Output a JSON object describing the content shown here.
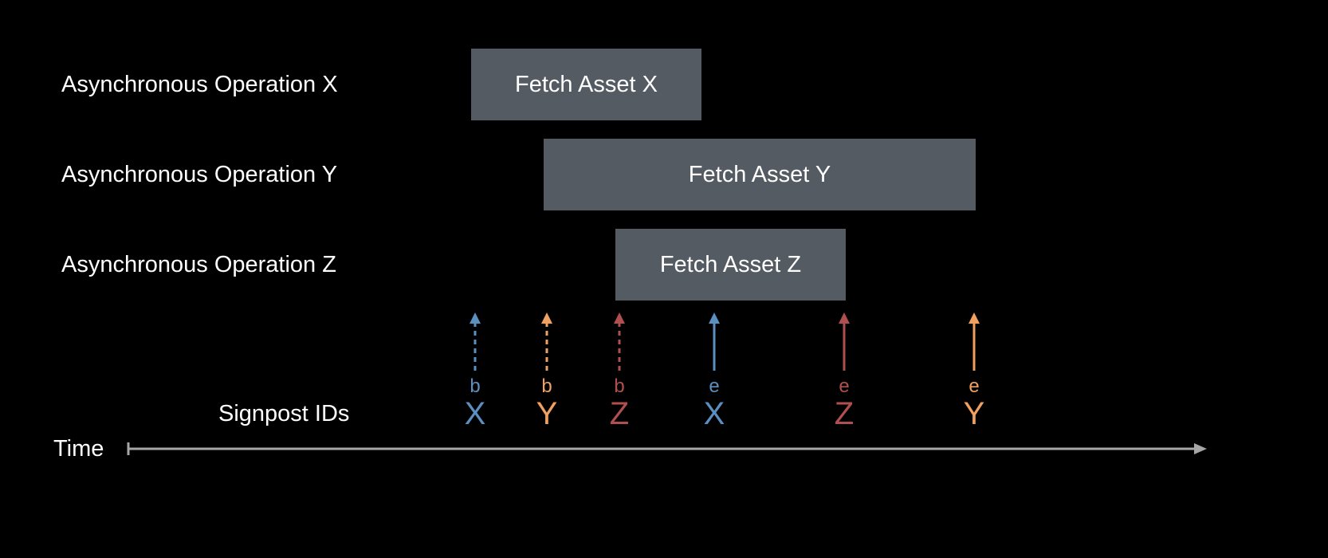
{
  "colors": {
    "background": "#000000",
    "bar_fill": "#545b62",
    "text": "#ffffff",
    "axis": "#a6a6a6",
    "X": "#5b8fc0",
    "Y": "#f0a060",
    "Z": "#b04f4f"
  },
  "rows": [
    {
      "label": "Asynchronous Operation X",
      "bar_label": "Fetch Asset X"
    },
    {
      "label": "Asynchronous Operation Y",
      "bar_label": "Fetch Asset Y"
    },
    {
      "label": "Asynchronous Operation Z",
      "bar_label": "Fetch Asset Z"
    }
  ],
  "signpost_label": "Signpost IDs",
  "time_label": "Time",
  "events": [
    {
      "kind": "b",
      "id": "X",
      "style": "dashed"
    },
    {
      "kind": "b",
      "id": "Y",
      "style": "dashed"
    },
    {
      "kind": "b",
      "id": "Z",
      "style": "dashed"
    },
    {
      "kind": "e",
      "id": "X",
      "style": "solid"
    },
    {
      "kind": "e",
      "id": "Z",
      "style": "solid"
    },
    {
      "kind": "e",
      "id": "Y",
      "style": "solid"
    }
  ]
}
